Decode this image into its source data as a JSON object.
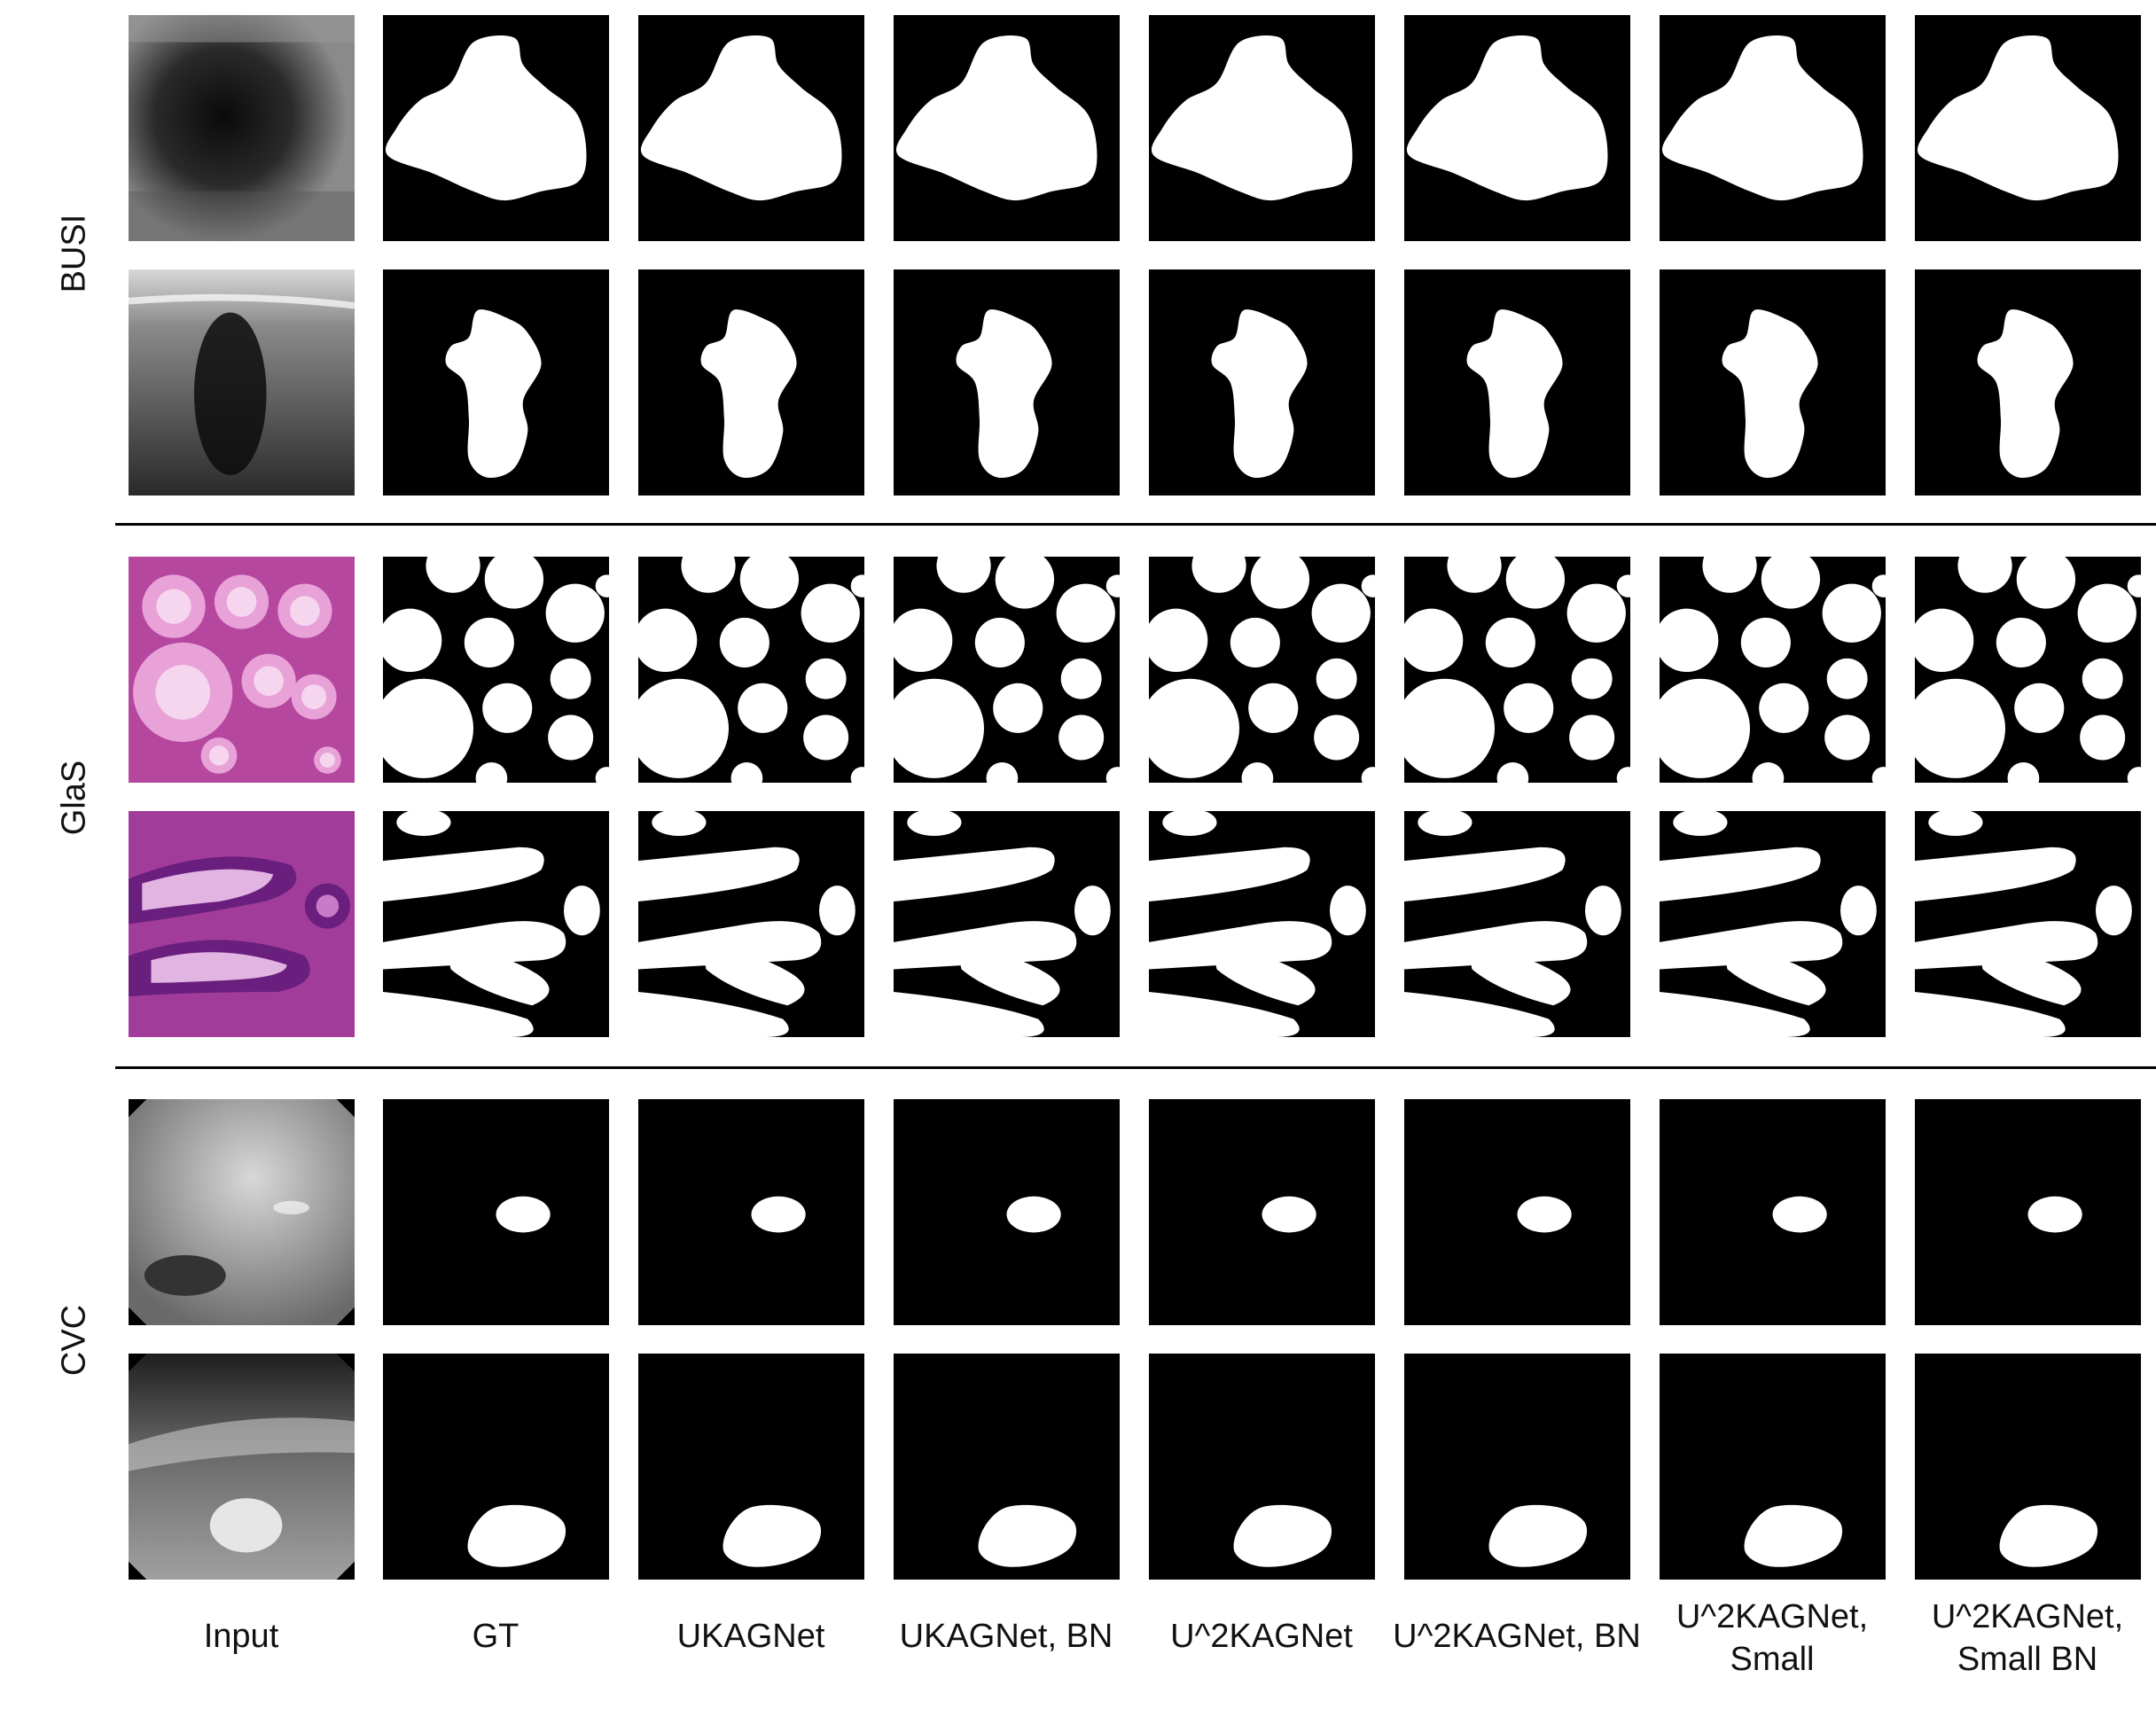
{
  "rows": [
    {
      "dataset": "BUSI",
      "input": "ultrasound",
      "shape": "busi1"
    },
    {
      "dataset": "BUSI",
      "input": "ultrasound2",
      "shape": "busi2"
    },
    {
      "dataset": "GlaS",
      "input": "histology",
      "shape": "glas1"
    },
    {
      "dataset": "GlaS",
      "input": "histology2",
      "shape": "glas2"
    },
    {
      "dataset": "CVC",
      "input": "endoscopy",
      "shape": "cvc1"
    },
    {
      "dataset": "CVC",
      "input": "endoscopy2",
      "shape": "cvc2"
    }
  ],
  "row_labels": [
    "BUSI",
    "GlaS",
    "CVC"
  ],
  "columns": [
    {
      "line1": "Input",
      "line2": ""
    },
    {
      "line1": "GT",
      "line2": ""
    },
    {
      "line1": "UKAGNet",
      "line2": ""
    },
    {
      "line1": "UKAGNet, BN",
      "line2": ""
    },
    {
      "line1": "U^2KAGNet",
      "line2": ""
    },
    {
      "line1": "U^2KAGNet, BN",
      "line2": ""
    },
    {
      "line1": "U^2KAGNet,",
      "line2": "Small"
    },
    {
      "line1": "U^2KAGNet,",
      "line2": "Small BN"
    }
  ],
  "colors": {
    "background": "#ffffff",
    "mask": "#000000",
    "foreground": "#ffffff",
    "separator": "#000000"
  }
}
